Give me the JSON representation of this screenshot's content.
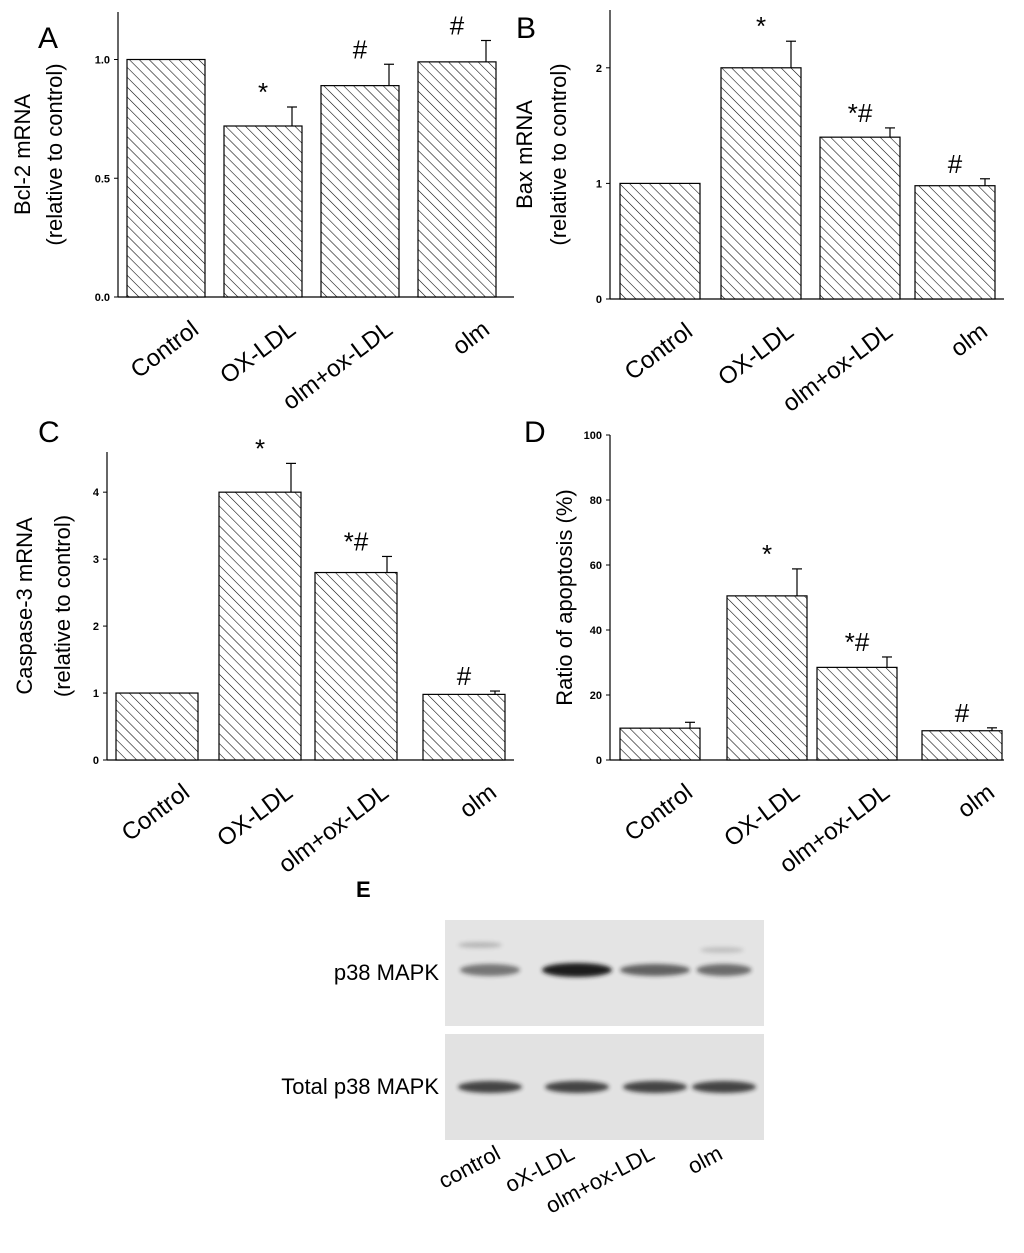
{
  "chart_data": [
    {
      "panel": "A",
      "type": "bar",
      "ylabel": [
        "Bcl-2 mRNA",
        "(relative to control)"
      ],
      "categories": [
        "Control",
        "OX-LDL",
        "olm+ox-LDL",
        "olm"
      ],
      "values": [
        1.0,
        0.72,
        0.89,
        0.99
      ],
      "errors": [
        0,
        0.08,
        0.09,
        0.09
      ],
      "significance": [
        "",
        "*",
        "#",
        "#"
      ],
      "ylim": [
        0,
        1.2
      ],
      "yticks": [
        0.0,
        0.5,
        1.0
      ],
      "ytick_labels": [
        "0.0",
        "0.5",
        "1.0"
      ]
    },
    {
      "panel": "B",
      "type": "bar",
      "ylabel": [
        "Bax mRNA",
        "(relative to control)"
      ],
      "categories": [
        "Control",
        "OX-LDL",
        "olm+ox-LDL",
        "olm"
      ],
      "values": [
        1.0,
        2.0,
        1.4,
        0.98
      ],
      "errors": [
        0,
        0.23,
        0.08,
        0.06
      ],
      "significance": [
        "",
        "*",
        "*#",
        "#"
      ],
      "ylim": [
        0,
        2.5
      ],
      "yticks": [
        0,
        1,
        2
      ],
      "ytick_labels": [
        "0",
        "1",
        "2"
      ]
    },
    {
      "panel": "C",
      "type": "bar",
      "ylabel": [
        "Caspase-3 mRNA",
        "(relative to control)"
      ],
      "categories": [
        "Control",
        "OX-LDL",
        "olm+ox-LDL",
        "olm"
      ],
      "values": [
        1.0,
        4.0,
        2.8,
        0.98
      ],
      "errors": [
        0,
        0.43,
        0.24,
        0.05
      ],
      "significance": [
        "",
        "*",
        "*#",
        "#"
      ],
      "ylim": [
        0,
        4.6
      ],
      "yticks": [
        0,
        1,
        2,
        3,
        4
      ],
      "ytick_labels": [
        "0",
        "1",
        "2",
        "3",
        "4"
      ]
    },
    {
      "panel": "D",
      "type": "bar",
      "ylabel": [
        "Ratio of apoptosis (%)"
      ],
      "categories": [
        "Control",
        "OX-LDL",
        "olm+ox-LDL",
        "olm"
      ],
      "values": [
        9.8,
        50.5,
        28.5,
        9.0
      ],
      "errors": [
        1.8,
        8.3,
        3.2,
        0.9
      ],
      "significance": [
        "",
        "*",
        "*#",
        "#"
      ],
      "ylim": [
        0,
        100
      ],
      "yticks": [
        0,
        20,
        40,
        60,
        80,
        100
      ],
      "ytick_labels": [
        "0",
        "20",
        "40",
        "60",
        "80",
        "100"
      ]
    }
  ],
  "blot": {
    "panel": "E",
    "rows": [
      "p38 MAPK",
      "Total p38 MAPK"
    ],
    "lanes": [
      "control",
      "oX-LDL",
      "olm+ox-LDL",
      "olm"
    ]
  },
  "colors": {
    "ink": "#000000",
    "hatch": "#000000",
    "blot_bg": "#e4e4e4",
    "band": "#3a3a3a"
  }
}
